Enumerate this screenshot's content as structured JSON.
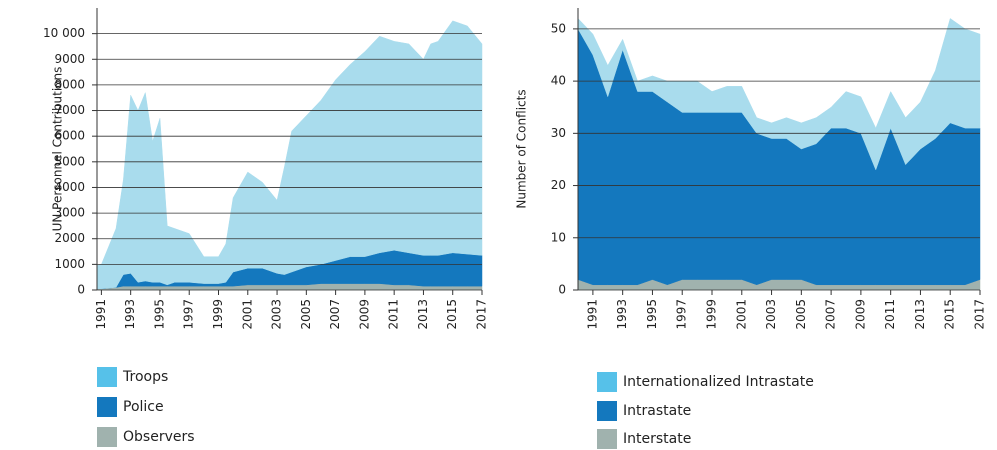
{
  "chart_data": [
    {
      "type": "stacked_area",
      "ylabel": "UN Personnel Contributions",
      "x": [
        1990.7,
        1991,
        1992,
        1992.5,
        1993,
        1993.5,
        1994,
        1994.5,
        1995,
        1995.5,
        1996,
        1997,
        1998,
        1999,
        1999.5,
        2000,
        2001,
        2002,
        2003,
        2003.5,
        2004,
        2005,
        2006,
        2007,
        2008,
        2009,
        2010,
        2011,
        2012,
        2013,
        2013.5,
        2014,
        2015,
        2016,
        2017
      ],
      "series": [
        {
          "name": "Troops",
          "color": "#a9dced",
          "legend_color": "#56c1e9",
          "values": [
            900,
            950,
            2300,
            3700,
            6950,
            6700,
            7350,
            5500,
            6400,
            2300,
            2100,
            1900,
            1050,
            1050,
            1500,
            2900,
            3750,
            3350,
            2850,
            4200,
            5500,
            5900,
            6400,
            7050,
            7500,
            8000,
            8450,
            8150,
            8150,
            7650,
            8250,
            8350,
            9050,
            8900,
            8250
          ]
        },
        {
          "name": "Police",
          "color": "#1478be",
          "legend_color": "#1478be",
          "values": [
            0,
            0,
            0,
            450,
            500,
            150,
            200,
            150,
            150,
            50,
            150,
            150,
            100,
            100,
            150,
            550,
            650,
            650,
            450,
            400,
            500,
            700,
            750,
            900,
            1050,
            1050,
            1200,
            1350,
            1250,
            1200,
            1200,
            1200,
            1300,
            1250,
            1200
          ]
        },
        {
          "name": "Observers",
          "color": "#a0b2ae",
          "legend_color": "#a0b2ae",
          "values": [
            50,
            50,
            100,
            150,
            150,
            150,
            150,
            150,
            150,
            150,
            150,
            150,
            150,
            150,
            150,
            150,
            200,
            200,
            200,
            200,
            200,
            200,
            250,
            250,
            250,
            250,
            250,
            200,
            200,
            150,
            150,
            150,
            150,
            150,
            150
          ]
        }
      ],
      "xlim": [
        1990.7,
        2017
      ],
      "xticks": [
        1991,
        1993,
        1995,
        1997,
        1999,
        2001,
        2003,
        2005,
        2007,
        2009,
        2011,
        2013,
        2015,
        2017
      ],
      "ylim": [
        0,
        11000
      ],
      "yticks": [
        0,
        1000,
        2000,
        3000,
        4000,
        5000,
        6000,
        7000,
        8000,
        9000,
        {
          "value": 10000,
          "label": "10 000"
        }
      ],
      "grid": true
    },
    {
      "type": "stacked_area",
      "ylabel": "Number of Conflicts",
      "x": [
        1990,
        1991,
        1992,
        1993,
        1994,
        1995,
        1996,
        1997,
        1998,
        1999,
        2000,
        2001,
        2002,
        2003,
        2004,
        2005,
        2006,
        2007,
        2008,
        2009,
        2010,
        2011,
        2012,
        2013,
        2014,
        2015,
        2016,
        2017
      ],
      "series": [
        {
          "name": "Internationalized Intrastate",
          "color": "#a9dced",
          "legend_color": "#56c1e9",
          "values": [
            2,
            4,
            6,
            2,
            2,
            3,
            4,
            6,
            6,
            4,
            5,
            5,
            3,
            3,
            4,
            5,
            5,
            4,
            7,
            7,
            8,
            7,
            9,
            9,
            13,
            20,
            19,
            18
          ]
        },
        {
          "name": "Intrastate",
          "color": "#1478be",
          "legend_color": "#1478be",
          "values": [
            48,
            44,
            36,
            45,
            37,
            36,
            35,
            32,
            32,
            32,
            32,
            32,
            29,
            27,
            27,
            25,
            27,
            30,
            30,
            29,
            22,
            30,
            23,
            26,
            28,
            31,
            30,
            29
          ]
        },
        {
          "name": "Interstate",
          "color": "#a0b2ae",
          "legend_color": "#a0b2ae",
          "values": [
            2,
            1,
            1,
            1,
            1,
            2,
            1,
            2,
            2,
            2,
            2,
            2,
            1,
            2,
            2,
            2,
            1,
            1,
            1,
            1,
            1,
            1,
            1,
            1,
            1,
            1,
            1,
            2
          ]
        }
      ],
      "xlim": [
        1990,
        2017
      ],
      "xticks": [
        1991,
        1993,
        1995,
        1997,
        1999,
        2001,
        2003,
        2005,
        2007,
        2009,
        2011,
        2013,
        2015,
        2017
      ],
      "ylim": [
        0,
        54
      ],
      "yticks": [
        0,
        10,
        20,
        30,
        40,
        50
      ],
      "grid": true
    }
  ]
}
